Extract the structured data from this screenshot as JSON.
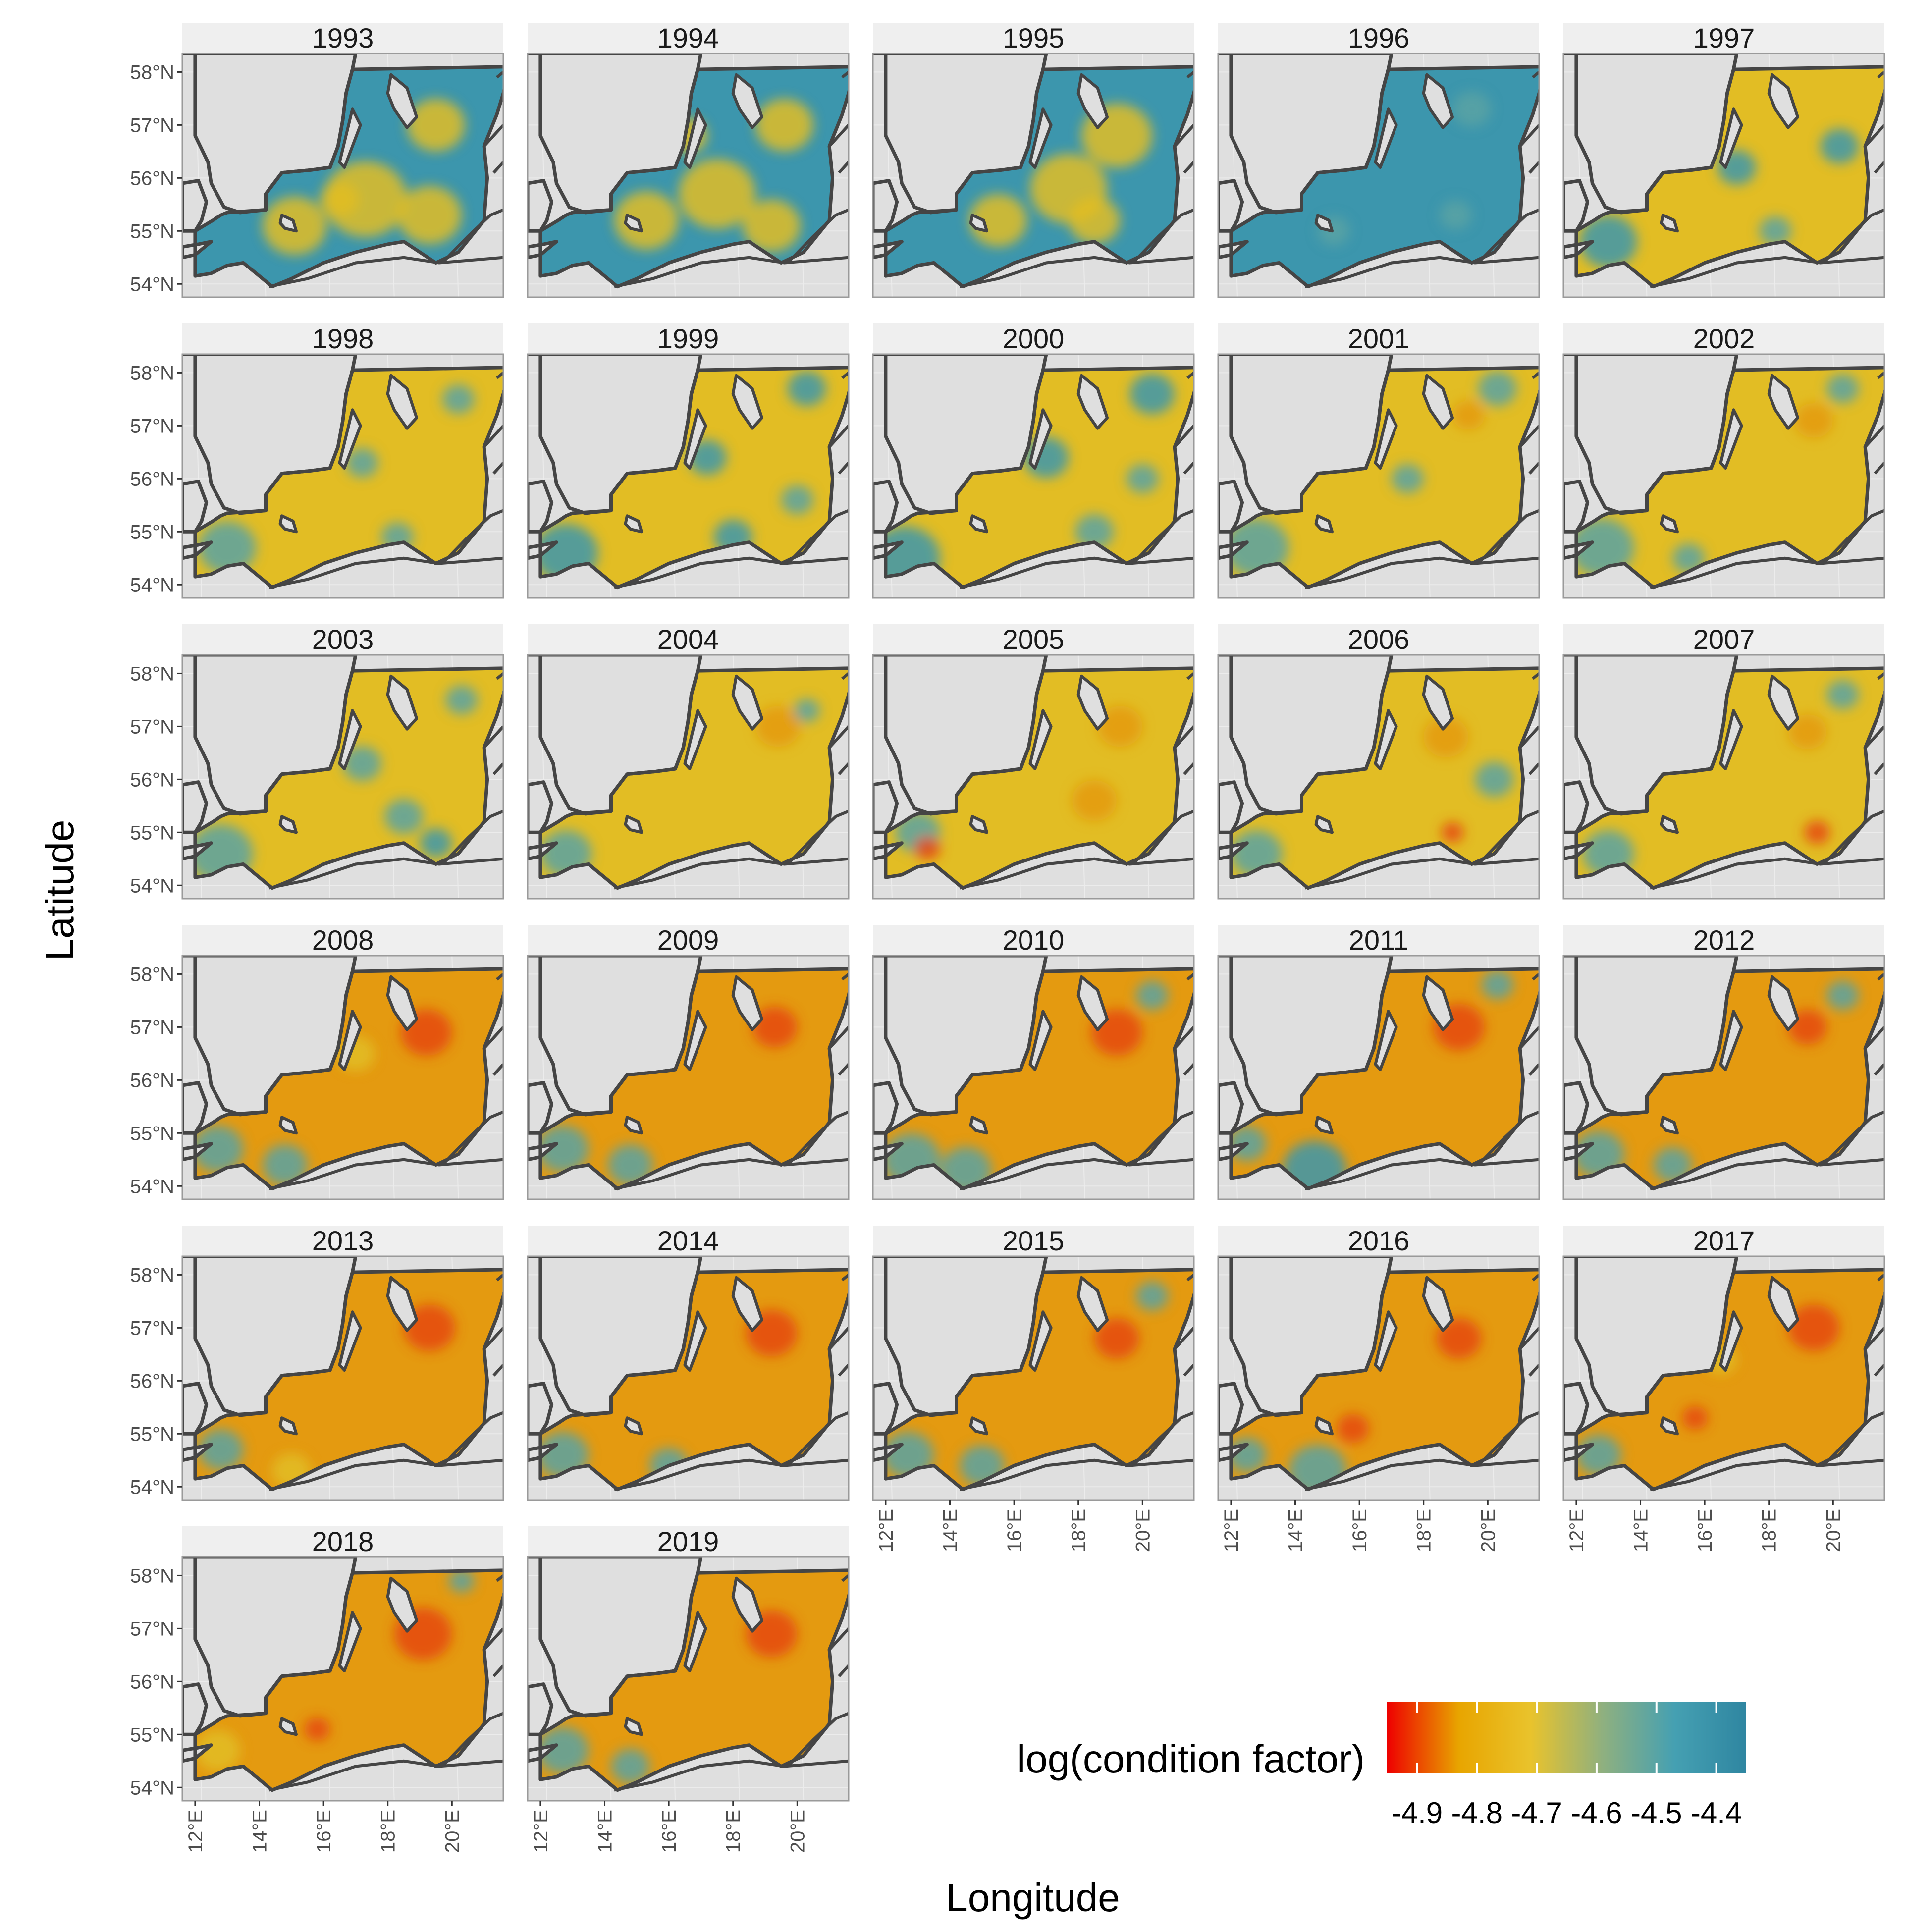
{
  "chart_data": {
    "type": "heatmap",
    "subtype": "faceted-map",
    "xlabel": "Longitude",
    "ylabel": "Latitude",
    "facets": [
      "1993",
      "1994",
      "1995",
      "1996",
      "1997",
      "1998",
      "1999",
      "2000",
      "2001",
      "2002",
      "2003",
      "2004",
      "2005",
      "2006",
      "2007",
      "2008",
      "2009",
      "2010",
      "2011",
      "2012",
      "2013",
      "2014",
      "2015",
      "2016",
      "2017",
      "2018",
      "2019"
    ],
    "x_ticks": [
      {
        "value": 12,
        "label": "12°E"
      },
      {
        "value": 14,
        "label": "14°E"
      },
      {
        "value": 16,
        "label": "16°E"
      },
      {
        "value": 18,
        "label": "18°E"
      },
      {
        "value": 20,
        "label": "20°E"
      }
    ],
    "y_ticks": [
      {
        "value": 54,
        "label": "54°N"
      },
      {
        "value": 55,
        "label": "55°N"
      },
      {
        "value": 56,
        "label": "56°N"
      },
      {
        "value": 57,
        "label": "57°N"
      },
      {
        "value": 58,
        "label": "58°N"
      }
    ],
    "xlim": [
      11.6,
      21.6
    ],
    "ylim": [
      53.75,
      58.35
    ],
    "legend": {
      "title": "log(condition factor)",
      "position": "bottom-right",
      "range": [
        -4.95,
        -4.35
      ],
      "tick_values": [
        -4.9,
        -4.8,
        -4.7,
        -4.6,
        -4.5,
        -4.4
      ],
      "tick_labels": [
        "-4.9",
        "-4.8",
        "-4.7",
        "-4.6",
        "-4.5",
        "-4.4"
      ],
      "colors": [
        "#ee0000",
        "#e8a500",
        "#e9c32c",
        "#8fb07f",
        "#45a0b2",
        "#2f86a1"
      ]
    },
    "grid": true,
    "land_color": "#dfdfdf",
    "coast_color": "#454545",
    "facet_strip_color": "#efefef"
  }
}
